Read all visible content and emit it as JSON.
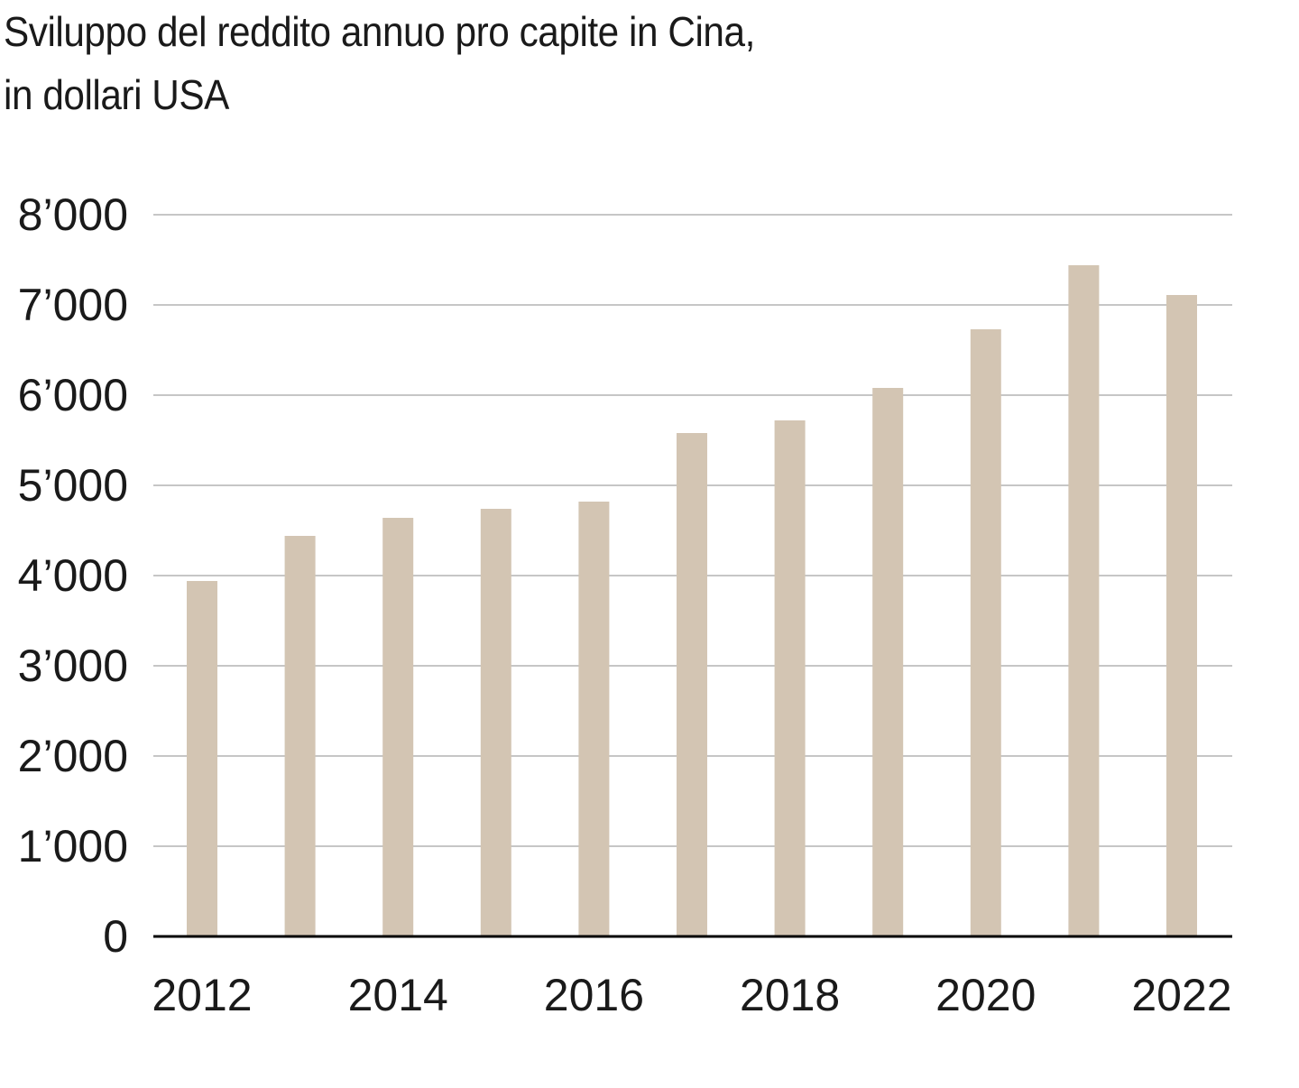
{
  "chart_data": {
    "type": "bar",
    "title_lines": [
      "Sviluppo del reddito annuo pro capite in Cina,",
      "in dollari USA"
    ],
    "categories": [
      "2012",
      "2013",
      "2014",
      "2015",
      "2016",
      "2017",
      "2018",
      "2019",
      "2020",
      "2021",
      "2022"
    ],
    "values": [
      3940,
      4440,
      4640,
      4740,
      4820,
      5580,
      5720,
      6080,
      6730,
      7440,
      7110
    ],
    "xlabel": "",
    "ylabel": "",
    "ylim": [
      0,
      8000
    ],
    "y_ticks": [
      0,
      1000,
      2000,
      3000,
      4000,
      5000,
      6000,
      7000,
      8000
    ],
    "y_tick_labels": [
      "0",
      "1’000",
      "2’000",
      "3’000",
      "4’000",
      "5’000",
      "6’000",
      "7’000",
      "8’000"
    ],
    "x_tick_labels": [
      "2012",
      "2014",
      "2016",
      "2018",
      "2020",
      "2022"
    ],
    "grid": true,
    "legend": "none",
    "bar_color": "#d3c5b3",
    "grid_color": "#c6c6c6",
    "axis_color": "#000000"
  }
}
